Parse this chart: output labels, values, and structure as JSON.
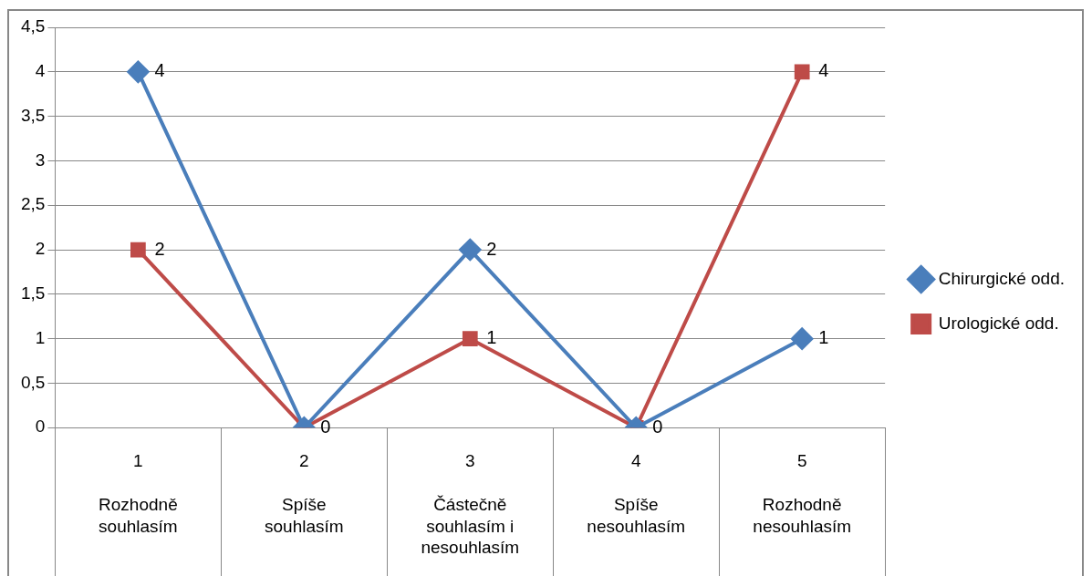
{
  "chart_data": {
    "type": "line",
    "categories": [
      "1 Rozhodně souhlasím",
      "2 Spíše souhlasím",
      "3 Částečně souhlasím i nesouhlasím",
      "4 Spíše nesouhlasím",
      "5 Rozhodně nesouhlasím"
    ],
    "series": [
      {
        "name": "Chirurgické odd.",
        "color": "#4a7ebb",
        "marker": "diamond",
        "values": [
          4,
          0,
          2,
          0,
          1
        ],
        "value_labels": [
          "4",
          "0",
          "2",
          "0",
          "1"
        ]
      },
      {
        "name": "Urologické odd.",
        "color": "#be4b48",
        "marker": "square",
        "values": [
          2,
          0,
          1,
          0,
          4
        ],
        "value_labels": [
          "2",
          null,
          "1",
          null,
          "4"
        ]
      }
    ],
    "ylim": [
      0,
      4.5
    ],
    "yticks": [
      0,
      {
        "value": 0.5,
        "label": "0,5"
      },
      1,
      {
        "value": 1.5,
        "label": "1,5"
      },
      2,
      {
        "value": 2.5,
        "label": "2,5"
      },
      3,
      {
        "value": 3.5,
        "label": "3,5"
      },
      4,
      {
        "value": 4.5,
        "label": "4,5"
      }
    ],
    "grid": "y",
    "legend": "right",
    "line_style": "solid"
  }
}
